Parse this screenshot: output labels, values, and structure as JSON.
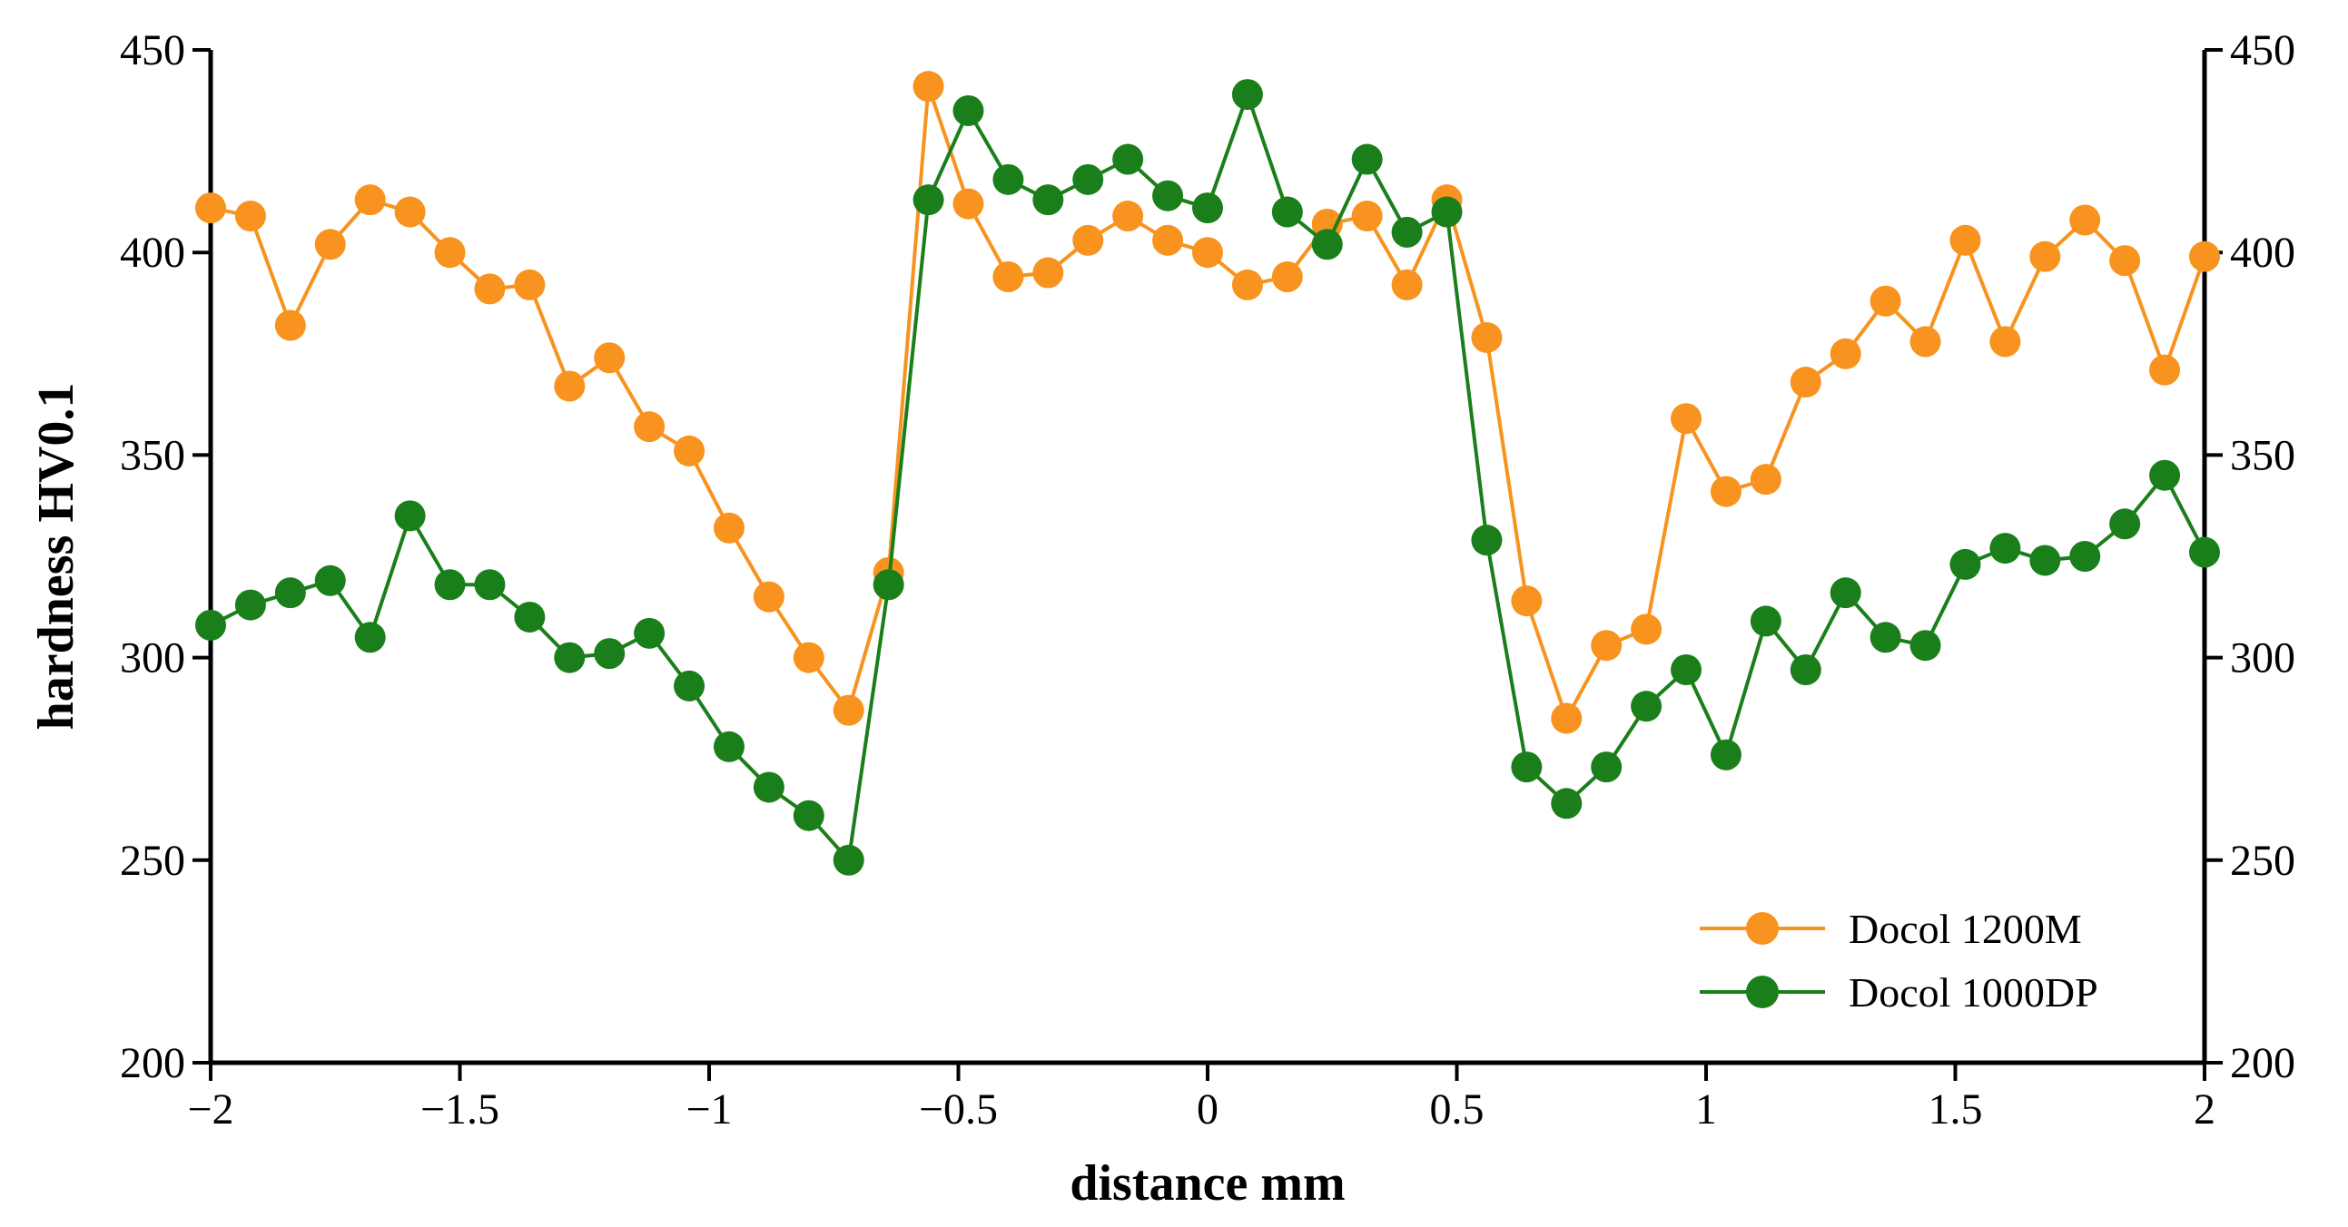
{
  "chart_data": {
    "type": "line",
    "xlabel": "distance mm",
    "ylabel": "hardness HV0.1",
    "xlim": [
      -2,
      2
    ],
    "ylim": [
      200,
      450
    ],
    "x_ticks": [
      -2,
      -1.5,
      -1,
      -0.5,
      0,
      0.5,
      1,
      1.5,
      2
    ],
    "x_tick_labels": [
      "−2",
      "−1.5",
      "−1",
      "−0.5",
      "0",
      "0.5",
      "1",
      "1.5",
      "2"
    ],
    "y_ticks": [
      200,
      250,
      300,
      350,
      400,
      450
    ],
    "y_tick_labels": [
      "200",
      "250",
      "300",
      "350",
      "400",
      "450"
    ],
    "grid": false,
    "legend_position": "bottom-right",
    "x": [
      -2,
      -1.92,
      -1.84,
      -1.76,
      -1.68,
      -1.6,
      -1.52,
      -1.44,
      -1.36,
      -1.28,
      -1.2,
      -1.12,
      -1.04,
      -0.96,
      -0.88,
      -0.8,
      -0.72,
      -0.64,
      -0.56,
      -0.48,
      -0.4,
      -0.32,
      -0.24,
      -0.16,
      -0.08,
      0,
      0.08,
      0.16,
      0.24,
      0.32,
      0.4,
      0.48,
      0.56,
      0.64,
      0.72,
      0.8,
      0.88,
      0.96,
      1.04,
      1.12,
      1.2,
      1.28,
      1.36,
      1.44,
      1.52,
      1.6,
      1.68,
      1.76,
      1.84,
      1.92,
      2
    ],
    "series": [
      {
        "name": "Docol 1200M",
        "color": "#F7931E",
        "values": [
          411,
          409,
          382,
          402,
          413,
          410,
          400,
          391,
          392,
          367,
          374,
          357,
          351,
          332,
          315,
          300,
          287,
          321,
          441,
          412,
          394,
          395,
          403,
          409,
          403,
          400,
          392,
          394,
          407,
          409,
          392,
          413,
          379,
          314,
          285,
          303,
          307,
          359,
          341,
          344,
          368,
          375,
          388,
          378,
          403,
          378,
          399,
          408,
          398,
          371,
          399
        ]
      },
      {
        "name": "Docol 1000DP",
        "color": "#1A7F1A",
        "values": [
          308,
          313,
          316,
          319,
          305,
          335,
          318,
          318,
          310,
          300,
          301,
          306,
          293,
          278,
          268,
          261,
          250,
          318,
          413,
          435,
          418,
          413,
          418,
          423,
          414,
          411,
          439,
          410,
          402,
          423,
          405,
          410,
          329,
          273,
          264,
          273,
          288,
          297,
          276,
          309,
          297,
          316,
          305,
          303,
          323,
          327,
          324,
          325,
          333,
          345,
          326
        ]
      }
    ]
  }
}
